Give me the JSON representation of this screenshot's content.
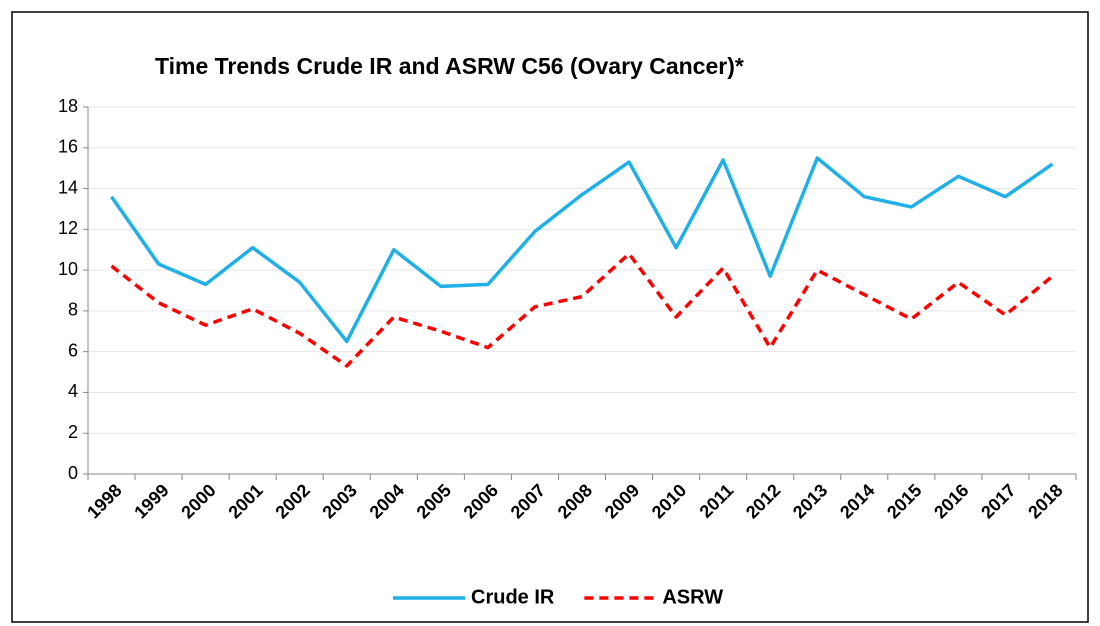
{
  "chart_data": {
    "type": "line",
    "title": "Time Trends Crude IR and ASRW C56 (Ovary Cancer)*",
    "categories": [
      "1998",
      "1999",
      "2000",
      "2001",
      "2002",
      "2003",
      "2004",
      "2005",
      "2006",
      "2007",
      "2008",
      "2009",
      "2010",
      "2011",
      "2012",
      "2013",
      "2014",
      "2015",
      "2016",
      "2017",
      "2018"
    ],
    "series": [
      {
        "name": "Crude IR",
        "color": "#1fb0e8",
        "dash": false,
        "values": [
          13.6,
          10.3,
          9.3,
          11.1,
          9.4,
          6.5,
          11.0,
          9.2,
          9.3,
          11.9,
          13.7,
          15.3,
          11.1,
          15.4,
          9.7,
          15.5,
          13.6,
          13.1,
          14.6,
          13.6,
          15.2
        ]
      },
      {
        "name": "ASRW",
        "color": "#ff0000",
        "dash": true,
        "values": [
          10.2,
          8.4,
          7.3,
          8.1,
          6.9,
          5.3,
          7.7,
          7.0,
          6.2,
          8.2,
          8.7,
          10.8,
          7.7,
          10.1,
          6.2,
          10.0,
          8.8,
          7.6,
          9.4,
          7.8,
          9.7
        ]
      }
    ],
    "ylim": [
      0,
      18
    ],
    "yticks": [
      0,
      2,
      4,
      6,
      8,
      10,
      12,
      14,
      16,
      18
    ],
    "grid": true,
    "legend": "bottom"
  }
}
